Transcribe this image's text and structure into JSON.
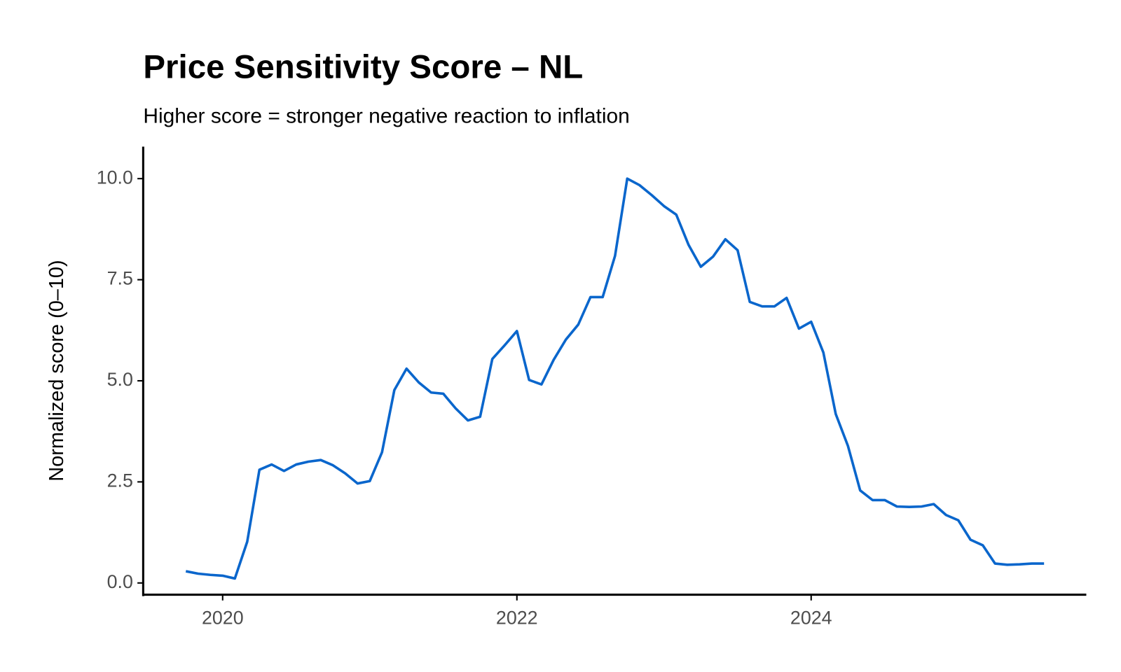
{
  "chart_data": {
    "type": "line",
    "title": "Price Sensitivity Score – NL",
    "subtitle": "Higher score = stronger negative reaction to inflation",
    "y_label": "Normalized score (0–10)",
    "x": [
      2019.75,
      2019.833,
      2019.917,
      2020.0,
      2020.083,
      2020.167,
      2020.25,
      2020.333,
      2020.417,
      2020.5,
      2020.583,
      2020.667,
      2020.75,
      2020.833,
      2020.917,
      2021.0,
      2021.083,
      2021.167,
      2021.25,
      2021.333,
      2021.417,
      2021.5,
      2021.583,
      2021.667,
      2021.75,
      2021.833,
      2021.917,
      2022.0,
      2022.083,
      2022.167,
      2022.25,
      2022.333,
      2022.417,
      2022.5,
      2022.583,
      2022.667,
      2022.75,
      2022.833,
      2022.917,
      2023.0,
      2023.083,
      2023.167,
      2023.25,
      2023.333,
      2023.417,
      2023.5,
      2023.583,
      2023.667,
      2023.75,
      2023.833,
      2023.917,
      2024.0,
      2024.083,
      2024.167,
      2024.25,
      2024.333,
      2024.417,
      2024.5,
      2024.583,
      2024.667,
      2024.75,
      2024.833,
      2024.917,
      2025.0,
      2025.083,
      2025.167,
      2025.25,
      2025.333,
      2025.417,
      2025.5,
      2025.583
    ],
    "series": [
      {
        "name": "NL",
        "color": "#0a66cc",
        "values": [
          0.29,
          0.23,
          0.2,
          0.18,
          0.11,
          1.02,
          2.8,
          2.93,
          2.77,
          2.93,
          3.0,
          3.04,
          2.91,
          2.71,
          2.46,
          2.52,
          3.23,
          4.77,
          5.3,
          4.96,
          4.71,
          4.68,
          4.32,
          4.02,
          4.11,
          5.54,
          5.88,
          6.23,
          5.02,
          4.91,
          5.52,
          6.02,
          6.39,
          7.07,
          7.07,
          8.09,
          10.0,
          9.84,
          9.59,
          9.32,
          9.11,
          8.36,
          7.82,
          8.07,
          8.5,
          8.23,
          6.95,
          6.84,
          6.84,
          7.05,
          6.29,
          6.46,
          5.7,
          4.18,
          3.39,
          2.29,
          2.05,
          2.05,
          1.89,
          1.88,
          1.89,
          1.95,
          1.68,
          1.55,
          1.07,
          0.93,
          0.48,
          0.45,
          0.46,
          0.48,
          0.48
        ]
      }
    ],
    "xlim": [
      2019.46,
      2025.87
    ],
    "xticks": [
      2020,
      2022,
      2024
    ],
    "ylim": [
      -0.29,
      10.79
    ],
    "yticks": [
      {
        "value": 0,
        "label": "0.0"
      },
      {
        "value": 2.5,
        "label": "2.5"
      },
      {
        "value": 5,
        "label": "5.0"
      },
      {
        "value": 7.5,
        "label": "7.5"
      },
      {
        "value": 10,
        "label": "10.0"
      }
    ],
    "grid": false
  }
}
